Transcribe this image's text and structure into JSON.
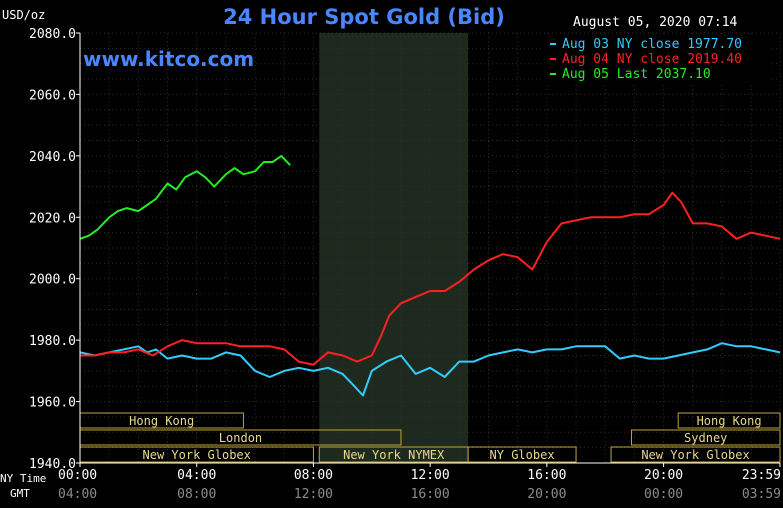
{
  "chart_data": {
    "type": "line",
    "title": "24 Hour Spot Gold (Bid)",
    "ylabel": "USD/oz",
    "watermark": "www.kitco.com",
    "timestamp": "August 05, 2020 07:14",
    "ylim": [
      1940,
      2080
    ],
    "y_ticks": [
      "2080.0",
      "2060.0",
      "2040.0",
      "2020.0",
      "2000.0",
      "1980.0",
      "1960.0",
      "1940.0"
    ],
    "x_ticks_ny": [
      "00:00",
      "04:00",
      "08:00",
      "12:00",
      "16:00",
      "20:00",
      "23:59"
    ],
    "x_ticks_gmt": [
      "04:00",
      "08:00",
      "12:00",
      "16:00",
      "20:00",
      "00:00",
      "03:59"
    ],
    "x_row_labels": {
      "ny": "NY Time",
      "gmt": "GMT"
    },
    "grid": true,
    "legend_position": "top-right",
    "shaded_session": {
      "label": "New York NYMEX",
      "start_hour": 8.2,
      "end_hour": 13.3
    },
    "sessions": [
      {
        "label": "Hong Kong",
        "start_hour": 0.0,
        "end_hour": 5.6,
        "row": 0
      },
      {
        "label": "London",
        "start_hour": 0.0,
        "end_hour": 11.0,
        "row": 1
      },
      {
        "label": "New York Globex",
        "start_hour": 0.0,
        "end_hour": 8.0,
        "row": 2
      },
      {
        "label": "New York NYMEX",
        "start_hour": 8.2,
        "end_hour": 13.3,
        "row": 2
      },
      {
        "label": "NY Globex",
        "start_hour": 13.3,
        "end_hour": 17.0,
        "row": 2
      },
      {
        "label": "Hong Kong",
        "start_hour": 20.5,
        "end_hour": 23.99,
        "row": 0
      },
      {
        "label": "Sydney",
        "start_hour": 18.9,
        "end_hour": 23.99,
        "row": 1
      },
      {
        "label": "New York Globex",
        "start_hour": 18.2,
        "end_hour": 23.99,
        "row": 2
      }
    ],
    "series": [
      {
        "name": "Aug 03 NY close 1977.70",
        "color": "#33ccff",
        "x": [
          0,
          0.5,
          1,
          1.5,
          2,
          2.3,
          2.6,
          3,
          3.5,
          4,
          4.5,
          5,
          5.5,
          6,
          6.5,
          7,
          7.5,
          8,
          8.5,
          9,
          9.3,
          9.7,
          10,
          10.5,
          11,
          11.5,
          12,
          12.5,
          13,
          13.5,
          14,
          14.5,
          15,
          15.5,
          16,
          16.5,
          17,
          17.5,
          18,
          18.5,
          19,
          19.5,
          20,
          20.5,
          21,
          21.5,
          22,
          22.5,
          23,
          23.5,
          23.99
        ],
        "y": [
          1976,
          1975,
          1976,
          1977,
          1978,
          1976,
          1977,
          1974,
          1975,
          1974,
          1974,
          1976,
          1975,
          1970,
          1968,
          1970,
          1971,
          1970,
          1971,
          1969,
          1966,
          1962,
          1970,
          1973,
          1975,
          1969,
          1971,
          1968,
          1973,
          1973,
          1975,
          1976,
          1977,
          1976,
          1977,
          1977,
          1978,
          1978,
          1978,
          1974,
          1975,
          1974,
          1974,
          1975,
          1976,
          1977,
          1979,
          1978,
          1978,
          1977,
          1976
        ]
      },
      {
        "name": "Aug 04 NY close 2019.40",
        "color": "#ff2020",
        "x": [
          0,
          0.5,
          1,
          1.5,
          2,
          2.5,
          3,
          3.5,
          4,
          4.5,
          5,
          5.5,
          6,
          6.5,
          7,
          7.5,
          8,
          8.5,
          9,
          9.5,
          10,
          10.3,
          10.6,
          11,
          11.5,
          12,
          12.5,
          13,
          13.5,
          14,
          14.5,
          15,
          15.5,
          16,
          16.5,
          17,
          17.5,
          18,
          18.5,
          19,
          19.5,
          20,
          20.3,
          20.6,
          21,
          21.5,
          22,
          22.5,
          23,
          23.5,
          23.99
        ],
        "y": [
          1975,
          1975,
          1976,
          1976,
          1977,
          1975,
          1978,
          1980,
          1979,
          1979,
          1979,
          1978,
          1978,
          1978,
          1977,
          1973,
          1972,
          1976,
          1975,
          1973,
          1975,
          1981,
          1988,
          1992,
          1994,
          1996,
          1996,
          1999,
          2003,
          2006,
          2008,
          2007,
          2003,
          2012,
          2018,
          2019,
          2020,
          2020,
          2020,
          2021,
          2021,
          2024,
          2028,
          2025,
          2018,
          2018,
          2017,
          2013,
          2015,
          2014,
          2013
        ]
      },
      {
        "name": "Aug 05 Last 2037.10",
        "color": "#22ee22",
        "x": [
          0,
          0.3,
          0.6,
          1,
          1.3,
          1.6,
          2,
          2.3,
          2.6,
          3,
          3.3,
          3.6,
          4,
          4.3,
          4.6,
          5,
          5.3,
          5.6,
          6,
          6.3,
          6.6,
          6.9,
          7.2
        ],
        "y": [
          2013,
          2014,
          2016,
          2020,
          2022,
          2023,
          2022,
          2024,
          2026,
          2031,
          2029,
          2033,
          2035,
          2033,
          2030,
          2034,
          2036,
          2034,
          2035,
          2038,
          2038,
          2040,
          2037
        ]
      }
    ]
  }
}
